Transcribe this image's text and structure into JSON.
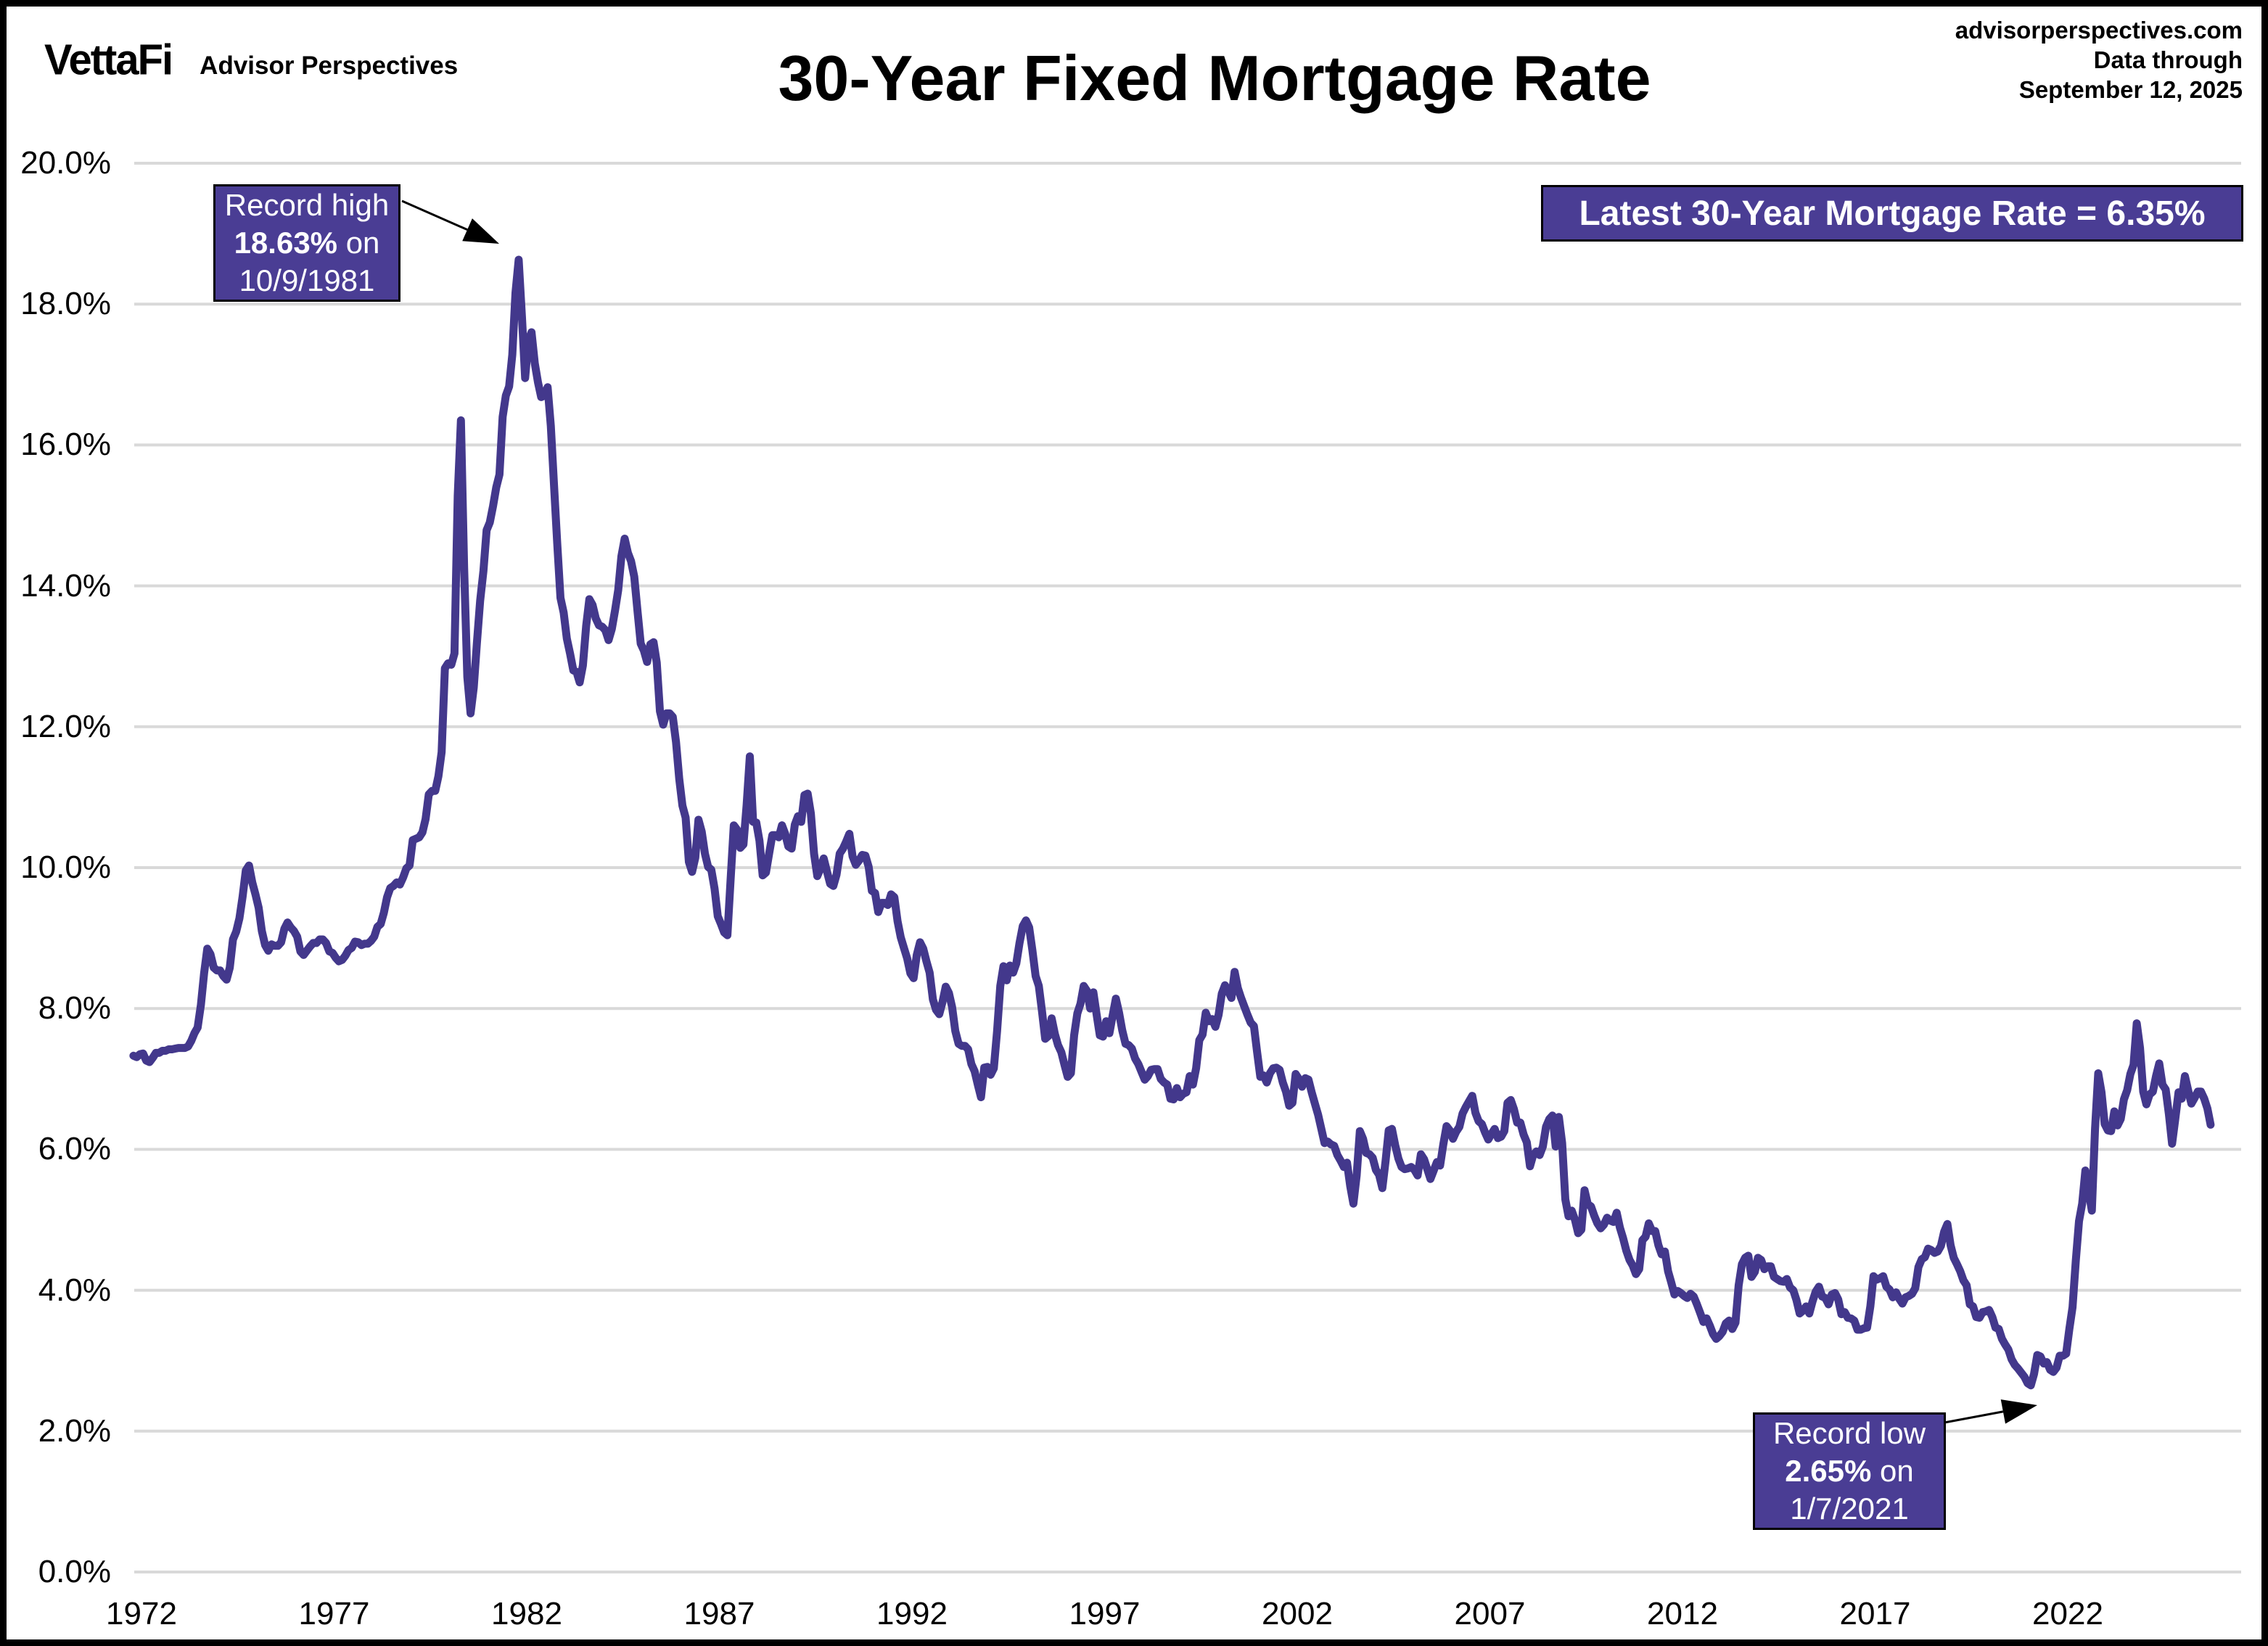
{
  "header": {
    "logo_text": "VettaFi",
    "logo_sub": "Advisor Perspectives",
    "title": "30-Year Fixed Mortgage Rate",
    "source_line1": "advisorperspectives.com",
    "source_line2": "Data through",
    "source_line3": "September 12, 2025"
  },
  "latest_banner": {
    "text": "Latest 30-Year Mortgage Rate = 6.35%"
  },
  "annotations": {
    "record_high": {
      "label": "Record high",
      "value": "18.63%",
      "suffix": " on",
      "date": "10/9/1981"
    },
    "record_low": {
      "label": "Record low",
      "value": "2.65%",
      "suffix": " on",
      "date": "1/7/2021"
    }
  },
  "colors": {
    "line_purple": "#43388C",
    "box_purple": "#4A3D94",
    "grid_gray": "#D9D9D9",
    "text_black": "#000000",
    "background": "#FFFFFF"
  },
  "chart_data": {
    "type": "line",
    "title": "30-Year Fixed Mortgage Rate",
    "series_name": "30-Year Fixed Mortgage Rate",
    "unit": "percent",
    "grid": true,
    "legend": "none",
    "ylim": [
      0,
      20
    ],
    "y_tick_step": 2,
    "y_ticks": [
      0,
      2,
      4,
      6,
      8,
      10,
      12,
      14,
      16,
      18,
      20
    ],
    "x_ticks": [
      1972,
      1977,
      1982,
      1987,
      1992,
      1997,
      2002,
      2007,
      2012,
      2017,
      2022
    ],
    "record_high": {
      "value": 18.63,
      "date": "10/9/1981"
    },
    "record_low": {
      "value": 2.65,
      "date": "1/7/2021"
    },
    "latest": {
      "value": 6.35,
      "as_of": "September 12, 2025"
    },
    "monthly_start": "1971-10",
    "monthly_end": "2025-09",
    "values": [
      7.33,
      7.31,
      7.35,
      7.36,
      7.26,
      7.24,
      7.3,
      7.37,
      7.37,
      7.4,
      7.4,
      7.42,
      7.42,
      7.43,
      7.44,
      7.44,
      7.44,
      7.46,
      7.54,
      7.65,
      7.73,
      8.05,
      8.5,
      8.85,
      8.77,
      8.58,
      8.54,
      8.54,
      8.46,
      8.41,
      8.58,
      8.98,
      9.09,
      9.28,
      9.59,
      9.96,
      10.03,
      9.79,
      9.62,
      9.43,
      9.1,
      8.9,
      8.82,
      8.91,
      8.89,
      8.89,
      8.94,
      9.13,
      9.22,
      9.15,
      9.1,
      9.02,
      8.81,
      8.76,
      8.82,
      8.88,
      8.93,
      8.93,
      8.98,
      8.98,
      8.93,
      8.81,
      8.79,
      8.72,
      8.67,
      8.69,
      8.75,
      8.83,
      8.86,
      8.95,
      8.94,
      8.9,
      8.92,
      8.92,
      8.96,
      9.02,
      9.16,
      9.2,
      9.36,
      9.58,
      9.71,
      9.74,
      9.79,
      9.76,
      9.86,
      9.99,
      10.03,
      10.39,
      10.41,
      10.43,
      10.5,
      10.69,
      11.04,
      11.09,
      11.09,
      11.3,
      11.64,
      12.83,
      12.9,
      12.88,
      13.04,
      15.28,
      16.35,
      14.26,
      12.71,
      12.19,
      12.56,
      13.2,
      13.79,
      14.21,
      14.79,
      14.9,
      15.13,
      15.4,
      15.58,
      16.4,
      16.7,
      16.83,
      17.28,
      18.16,
      18.63,
      17.82,
      16.95,
      17.48,
      17.6,
      17.16,
      16.89,
      16.68,
      16.7,
      16.82,
      16.27,
      15.43,
      14.61,
      13.83,
      13.62,
      13.25,
      13.04,
      12.8,
      12.78,
      12.63,
      12.87,
      13.43,
      13.81,
      13.73,
      13.54,
      13.44,
      13.42,
      13.37,
      13.23,
      13.39,
      13.65,
      13.94,
      14.42,
      14.67,
      14.47,
      14.35,
      14.13,
      13.64,
      13.18,
      13.08,
      12.92,
      13.17,
      13.2,
      12.91,
      12.22,
      12.03,
      12.19,
      12.19,
      12.14,
      11.78,
      11.26,
      10.88,
      10.71,
      10.08,
      9.94,
      10.14,
      10.68,
      10.51,
      10.2,
      10.01,
      9.97,
      9.7,
      9.31,
      9.2,
      9.08,
      9.04,
      9.83,
      10.6,
      10.54,
      10.28,
      10.33,
      10.89,
      11.58,
      10.65,
      10.64,
      10.38,
      9.89,
      9.93,
      10.2,
      10.46,
      10.46,
      10.43,
      10.6,
      10.48,
      10.3,
      10.27,
      10.61,
      10.73,
      10.65,
      11.03,
      11.05,
      10.77,
      10.2,
      9.88,
      9.99,
      10.13,
      9.95,
      9.77,
      9.74,
      9.9,
      10.2,
      10.27,
      10.37,
      10.48,
      10.16,
      10.04,
      10.1,
      10.18,
      10.17,
      10.01,
      9.67,
      9.64,
      9.37,
      9.5,
      9.5,
      9.47,
      9.62,
      9.58,
      9.24,
      9.01,
      8.86,
      8.71,
      8.5,
      8.43,
      8.76,
      8.94,
      8.85,
      8.67,
      8.51,
      8.13,
      7.98,
      7.92,
      8.09,
      8.31,
      8.22,
      8.02,
      7.68,
      7.5,
      7.47,
      7.47,
      7.42,
      7.21,
      7.11,
      6.92,
      6.74,
      7.16,
      7.17,
      7.06,
      7.15,
      7.68,
      8.32,
      8.6,
      8.4,
      8.61,
      8.51,
      8.64,
      8.93,
      9.17,
      9.25,
      9.15,
      8.83,
      8.46,
      8.32,
      7.96,
      7.57,
      7.61,
      7.86,
      7.64,
      7.48,
      7.38,
      7.2,
      7.03,
      7.08,
      7.62,
      7.93,
      8.07,
      8.32,
      8.25,
      8.0,
      8.23,
      7.92,
      7.62,
      7.6,
      7.82,
      7.65,
      7.9,
      8.14,
      7.94,
      7.69,
      7.5,
      7.48,
      7.43,
      7.29,
      7.21,
      7.1,
      6.99,
      7.04,
      7.13,
      7.14,
      7.14,
      7.0,
      6.95,
      6.92,
      6.72,
      6.71,
      6.87,
      6.74,
      6.79,
      6.81,
      7.04,
      6.92,
      7.15,
      7.55,
      7.63,
      7.94,
      7.82,
      7.85,
      7.74,
      7.91,
      8.21,
      8.33,
      8.24,
      8.15,
      8.52,
      8.29,
      8.15,
      8.03,
      7.91,
      7.8,
      7.75,
      7.38,
      7.03,
      7.05,
      6.95,
      7.08,
      7.15,
      7.16,
      7.13,
      6.95,
      6.82,
      6.62,
      6.66,
      7.07,
      7.0,
      6.89,
      7.01,
      6.99,
      6.81,
      6.65,
      6.49,
      6.29,
      6.09,
      6.11,
      6.07,
      6.05,
      5.92,
      5.84,
      5.75,
      5.81,
      5.48,
      5.23,
      5.63,
      6.26,
      6.15,
      5.95,
      5.93,
      5.88,
      5.71,
      5.64,
      5.45,
      5.83,
      6.27,
      6.29,
      6.06,
      5.87,
      5.75,
      5.72,
      5.73,
      5.75,
      5.71,
      5.63,
      5.93,
      5.86,
      5.72,
      5.58,
      5.7,
      5.82,
      5.77,
      6.07,
      6.33,
      6.27,
      6.15,
      6.25,
      6.32,
      6.51,
      6.6,
      6.68,
      6.76,
      6.52,
      6.4,
      6.36,
      6.24,
      6.14,
      6.22,
      6.29,
      6.16,
      6.18,
      6.26,
      6.66,
      6.7,
      6.57,
      6.38,
      6.38,
      6.21,
      6.1,
      5.76,
      5.92,
      5.97,
      5.92,
      6.04,
      6.32,
      6.43,
      6.48,
      6.04,
      6.46,
      6.09,
      5.29,
      5.05,
      5.13,
      5.0,
      4.81,
      4.86,
      5.42,
      5.22,
      5.19,
      5.06,
      4.95,
      4.88,
      4.93,
      5.03,
      4.99,
      4.97,
      5.1,
      4.89,
      4.74,
      4.56,
      4.43,
      4.35,
      4.23,
      4.3,
      4.71,
      4.76,
      4.95,
      4.84,
      4.84,
      4.64,
      4.51,
      4.55,
      4.27,
      4.11,
      3.94,
      3.99,
      3.96,
      3.92,
      3.89,
      3.95,
      3.91,
      3.8,
      3.68,
      3.55,
      3.6,
      3.5,
      3.38,
      3.31,
      3.35,
      3.41,
      3.53,
      3.57,
      3.45,
      3.54,
      4.07,
      4.37,
      4.46,
      4.49,
      4.19,
      4.26,
      4.46,
      4.43,
      4.3,
      4.34,
      4.34,
      4.19,
      4.16,
      4.13,
      4.12,
      4.16,
      4.04,
      4.0,
      3.86,
      3.67,
      3.71,
      3.77,
      3.67,
      3.84,
      3.98,
      4.05,
      3.91,
      3.89,
      3.8,
      3.94,
      3.96,
      3.87,
      3.66,
      3.69,
      3.61,
      3.6,
      3.57,
      3.44,
      3.44,
      3.46,
      3.47,
      3.77,
      4.2,
      4.15,
      4.17,
      4.2,
      4.05,
      4.01,
      3.9,
      3.97,
      3.88,
      3.81,
      3.9,
      3.92,
      3.95,
      4.03,
      4.33,
      4.44,
      4.47,
      4.59,
      4.57,
      4.53,
      4.55,
      4.63,
      4.83,
      4.94,
      4.64,
      4.46,
      4.37,
      4.27,
      4.14,
      4.07,
      3.8,
      3.77,
      3.62,
      3.61,
      3.69,
      3.7,
      3.72,
      3.62,
      3.47,
      3.45,
      3.31,
      3.23,
      3.16,
      3.02,
      2.94,
      2.89,
      2.83,
      2.77,
      2.68,
      2.65,
      2.81,
      3.08,
      3.06,
      2.96,
      2.98,
      2.87,
      2.84,
      2.9,
      3.07,
      3.07,
      3.1,
      3.45,
      3.76,
      4.42,
      4.98,
      5.23,
      5.7,
      5.41,
      5.13,
      6.29,
      7.08,
      6.81,
      6.36,
      6.27,
      6.26,
      6.54,
      6.34,
      6.43,
      6.71,
      6.84,
      7.07,
      7.2,
      7.79,
      7.44,
      6.82,
      6.64,
      6.78,
      6.82,
      7.04,
      7.22,
      6.92,
      6.85,
      6.5,
      6.08,
      6.43,
      6.81,
      6.72,
      7.04,
      6.84,
      6.65,
      6.73,
      6.82,
      6.82,
      6.72,
      6.58,
      6.35
    ]
  }
}
